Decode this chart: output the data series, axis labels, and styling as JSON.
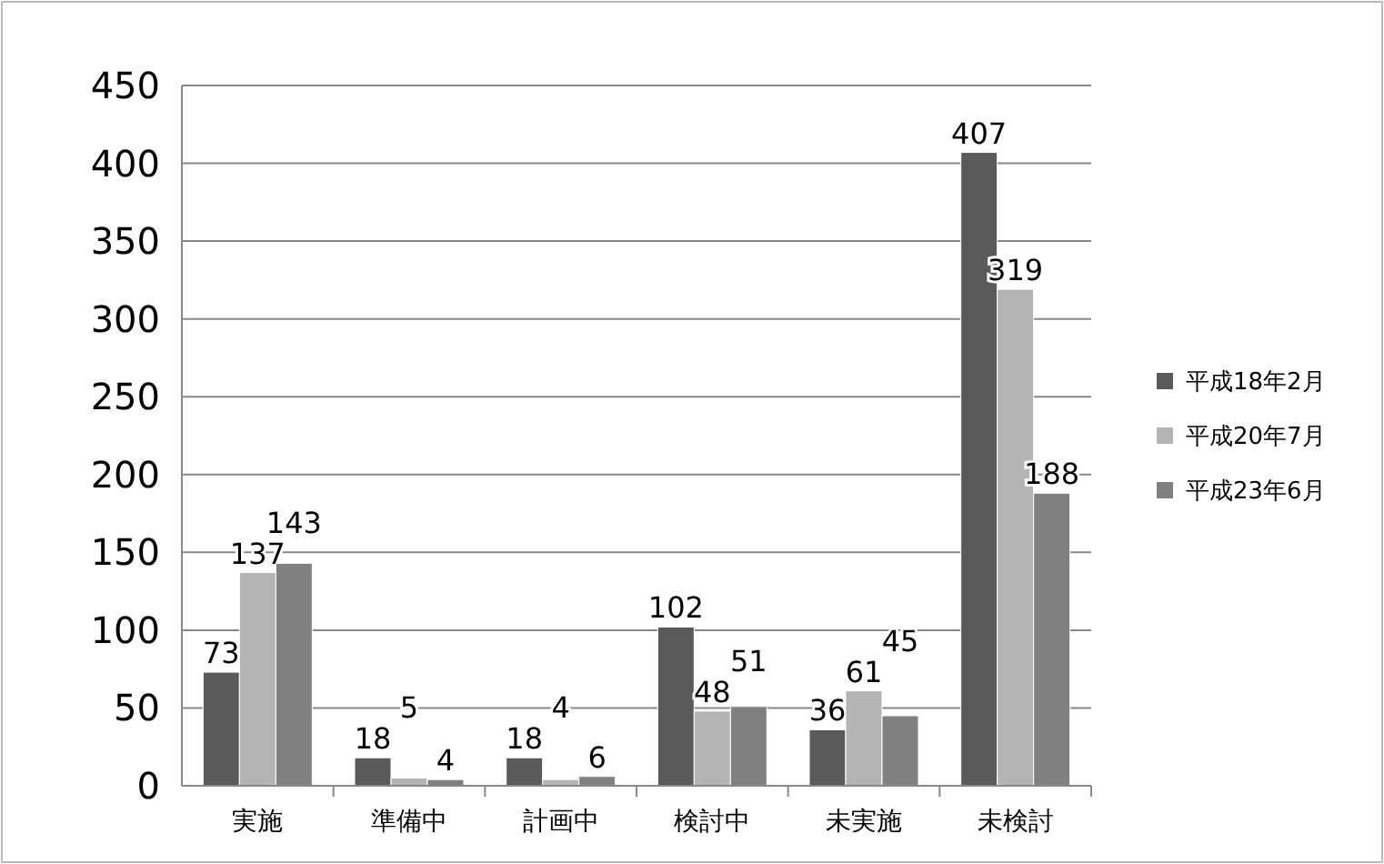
{
  "chart_data": {
    "type": "bar",
    "categories": [
      "実施",
      "準備中",
      "計画中",
      "検討中",
      "未実施",
      "未検討"
    ],
    "series": [
      {
        "name": "平成18年2月",
        "color": "#5a5a5a",
        "values": [
          73,
          18,
          18,
          102,
          36,
          407
        ]
      },
      {
        "name": "平成20年7月",
        "color": "#b4b4b4",
        "values": [
          137,
          5,
          4,
          48,
          61,
          319
        ]
      },
      {
        "name": "平成23年6月",
        "color": "#808080",
        "values": [
          143,
          4,
          6,
          51,
          45,
          188
        ]
      }
    ],
    "ylim": [
      0,
      450
    ],
    "yticks": [
      0,
      50,
      100,
      150,
      200,
      250,
      300,
      350,
      400,
      450
    ],
    "grid": "y",
    "legend": "right",
    "data_labels": true
  }
}
